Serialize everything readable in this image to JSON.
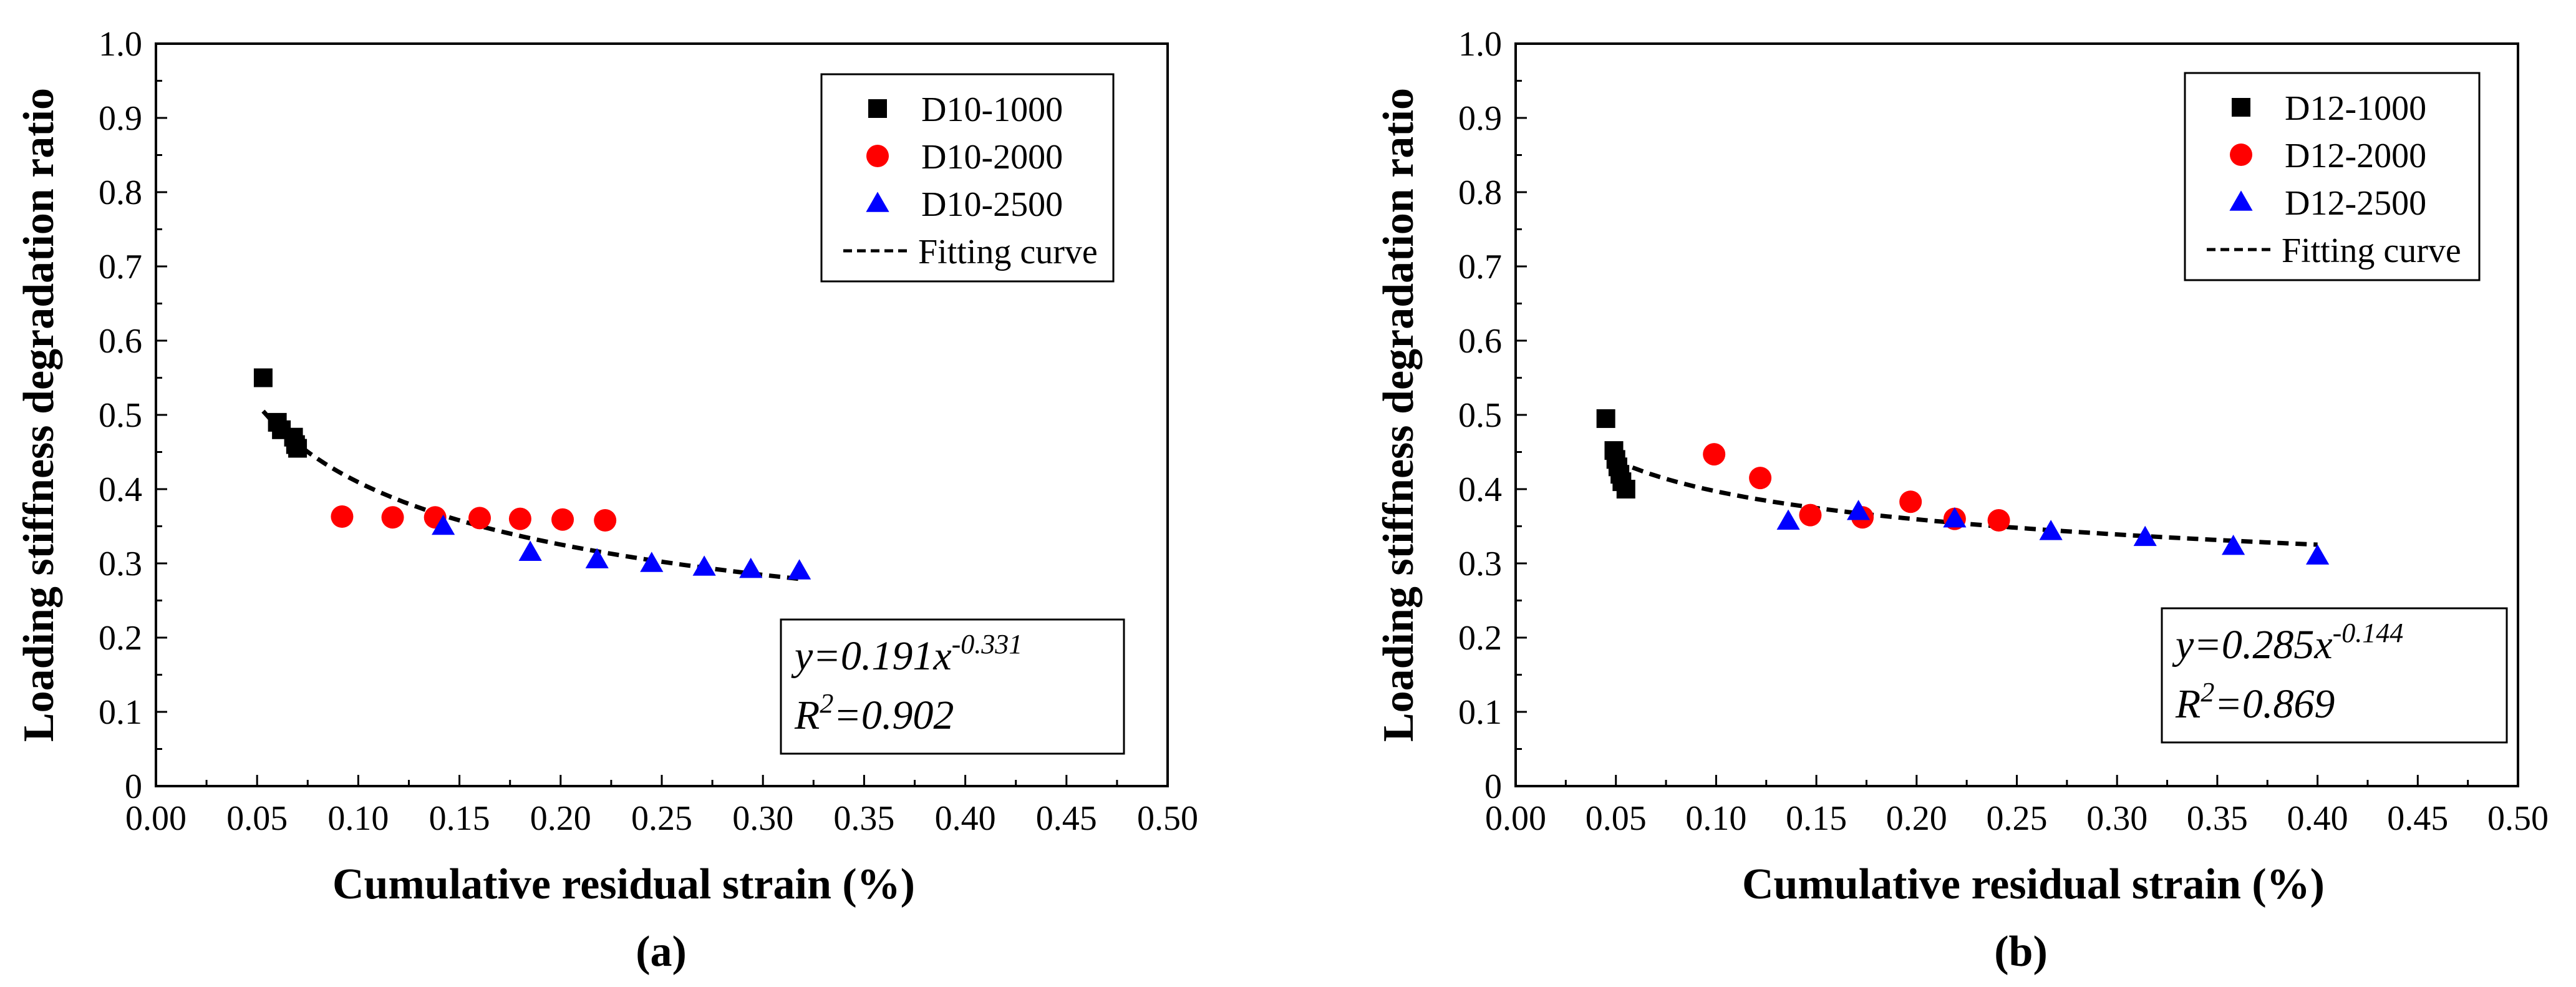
{
  "chart_data": [
    {
      "type": "scatter",
      "panel_label": "(a)",
      "xlabel": "Cumulative residual strain (%)",
      "ylabel": "Loading stiffness degradation ratio",
      "xlim": [
        0.0,
        0.5
      ],
      "ylim": [
        0.0,
        1.0
      ],
      "xticks": [
        "0.00",
        "0.05",
        "0.10",
        "0.15",
        "0.20",
        "0.25",
        "0.30",
        "0.35",
        "0.40",
        "0.45",
        "0.50"
      ],
      "yticks": [
        "0",
        "0.1",
        "0.2",
        "0.3",
        "0.4",
        "0.5",
        "0.6",
        "0.7",
        "0.8",
        "0.9",
        "1.0"
      ],
      "grid": false,
      "legend_position": "top-right",
      "series": [
        {
          "name": "D10-1000",
          "marker": "square",
          "color": "#000000",
          "x": [
            0.053,
            0.06,
            0.062,
            0.068,
            0.069,
            0.07
          ],
          "y": [
            0.55,
            0.49,
            0.48,
            0.47,
            0.46,
            0.455
          ]
        },
        {
          "name": "D10-2000",
          "marker": "circle",
          "color": "#ff0000",
          "x": [
            0.092,
            0.117,
            0.138,
            0.16,
            0.18,
            0.201,
            0.222
          ],
          "y": [
            0.363,
            0.362,
            0.362,
            0.361,
            0.36,
            0.359,
            0.358
          ]
        },
        {
          "name": "D10-2500",
          "marker": "triangle",
          "color": "#0000ff",
          "x": [
            0.142,
            0.185,
            0.218,
            0.245,
            0.271,
            0.294,
            0.318
          ],
          "y": [
            0.35,
            0.315,
            0.305,
            0.3,
            0.295,
            0.292,
            0.29
          ]
        }
      ],
      "fit": {
        "name": "Fitting curve",
        "a": 0.191,
        "b": -0.331,
        "x_range": [
          0.053,
          0.318
        ]
      },
      "equation_lines": [
        {
          "base": "y=0.191x",
          "sup": "-0.331"
        },
        {
          "base": "R",
          "sup": "2",
          "tail": "=0.902"
        }
      ]
    },
    {
      "type": "scatter",
      "panel_label": "(b)",
      "xlabel": "Cumulative residual strain (%)",
      "ylabel": "Loading stiffness degradation ratio",
      "xlim": [
        0.0,
        0.5
      ],
      "ylim": [
        0.0,
        1.0
      ],
      "xticks": [
        "0.00",
        "0.05",
        "0.10",
        "0.15",
        "0.20",
        "0.25",
        "0.30",
        "0.35",
        "0.40",
        "0.45",
        "0.50"
      ],
      "yticks": [
        "0",
        "0.1",
        "0.2",
        "0.3",
        "0.4",
        "0.5",
        "0.6",
        "0.7",
        "0.8",
        "0.9",
        "1.0"
      ],
      "grid": false,
      "legend_position": "top-right",
      "series": [
        {
          "name": "D12-1000",
          "marker": "square",
          "color": "#000000",
          "x": [
            0.045,
            0.049,
            0.05,
            0.051,
            0.052,
            0.053,
            0.055
          ],
          "y": [
            0.495,
            0.452,
            0.44,
            0.43,
            0.42,
            0.41,
            0.4
          ]
        },
        {
          "name": "D12-2000",
          "marker": "circle",
          "color": "#ff0000",
          "x": [
            0.099,
            0.122,
            0.147,
            0.173,
            0.197,
            0.219,
            0.241
          ],
          "y": [
            0.447,
            0.415,
            0.365,
            0.362,
            0.383,
            0.36,
            0.358
          ]
        },
        {
          "name": "D12-2500",
          "marker": "triangle",
          "color": "#0000ff",
          "x": [
            0.136,
            0.171,
            0.219,
            0.267,
            0.314,
            0.358,
            0.4
          ],
          "y": [
            0.357,
            0.37,
            0.36,
            0.343,
            0.335,
            0.323,
            0.31
          ]
        }
      ],
      "fit": {
        "name": "Fitting curve",
        "a": 0.285,
        "b": -0.144,
        "x_range": [
          0.05,
          0.4
        ]
      },
      "equation_lines": [
        {
          "base": "y=0.285x",
          "sup": "-0.144"
        },
        {
          "base": "R",
          "sup": "2",
          "tail": "=0.869"
        }
      ]
    }
  ]
}
